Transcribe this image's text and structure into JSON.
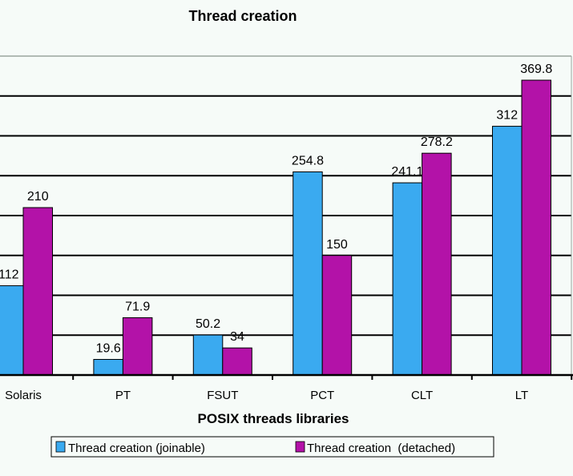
{
  "chart_data": {
    "type": "bar",
    "title": "Thread creation",
    "xlabel": "POSIX threads libraries",
    "ylabel": "",
    "ylim": [
      0,
      400
    ],
    "grid_step": 50,
    "grid": true,
    "legend_placement": "bottom",
    "categories": [
      "Solaris",
      "PT",
      "FSUT",
      "PCT",
      "CLT",
      "LT"
    ],
    "series": [
      {
        "name": "Thread creation (joinable)",
        "color": "#3aaaf0",
        "values": [
          112,
          19.6,
          50.2,
          254.8,
          241.1,
          312
        ],
        "labels": [
          "112",
          "19.6",
          "50.2",
          "254.8",
          "241.1",
          "312"
        ]
      },
      {
        "name": "Thread creation  (detached)",
        "color": "#b312a8",
        "values": [
          210,
          71.9,
          34,
          150,
          278.2,
          369.8
        ],
        "labels": [
          "210",
          "71.9",
          "34",
          "150",
          "278.2",
          "369.8"
        ]
      }
    ]
  }
}
